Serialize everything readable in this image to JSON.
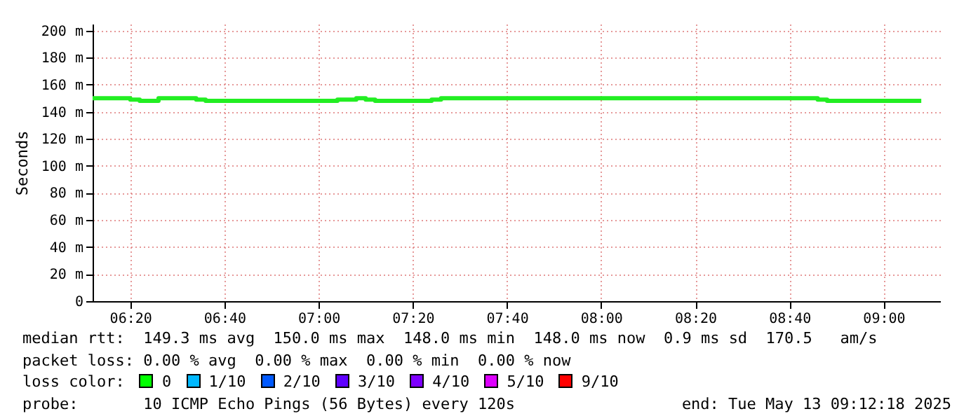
{
  "chart_data": {
    "type": "step",
    "ylabel": "Seconds",
    "x": [
      "2025-05-13T06:12",
      "2025-05-13T06:20",
      "2025-05-13T06:22",
      "2025-05-13T06:26",
      "2025-05-13T06:34",
      "2025-05-13T06:36",
      "2025-05-13T07:04",
      "2025-05-13T07:08",
      "2025-05-13T07:10",
      "2025-05-13T07:12",
      "2025-05-13T07:24",
      "2025-05-13T07:26",
      "2025-05-13T08:46",
      "2025-05-13T08:48",
      "2025-05-13T09:08"
    ],
    "series": [
      {
        "color": "#22ee22",
        "values": [
          150,
          149,
          148,
          150,
          149,
          148,
          149,
          150,
          149,
          148,
          149,
          150,
          149,
          148,
          148
        ]
      }
    ],
    "xlim": [
      "2025-05-13T06:12",
      "2025-05-13T09:12"
    ],
    "xticks": [
      {
        "value": "2025-05-13T06:20",
        "label": "06:20"
      },
      {
        "value": "2025-05-13T06:40",
        "label": "06:40"
      },
      {
        "value": "2025-05-13T07:00",
        "label": "07:00"
      },
      {
        "value": "2025-05-13T07:20",
        "label": "07:20"
      },
      {
        "value": "2025-05-13T07:40",
        "label": "07:40"
      },
      {
        "value": "2025-05-13T08:00",
        "label": "08:00"
      },
      {
        "value": "2025-05-13T08:20",
        "label": "08:20"
      },
      {
        "value": "2025-05-13T08:40",
        "label": "08:40"
      },
      {
        "value": "2025-05-13T09:00",
        "label": "09:00"
      }
    ],
    "ylim": [
      0,
      205
    ],
    "yticks": [
      0,
      {
        "value": 20,
        "label": "20 m"
      },
      {
        "value": 40,
        "label": "40 m"
      },
      {
        "value": 60,
        "label": "60 m"
      },
      {
        "value": 80,
        "label": "80 m"
      },
      {
        "value": 100,
        "label": "100 m"
      },
      {
        "value": 120,
        "label": "120 m"
      },
      {
        "value": 140,
        "label": "140 m"
      },
      {
        "value": 160,
        "label": "160 m"
      },
      {
        "value": 180,
        "label": "180 m"
      },
      {
        "value": 200,
        "label": "200 m"
      }
    ],
    "grid": true,
    "marker": "none",
    "line_style": "solid",
    "annotations": [
      "median rtt:  149.3 ms avg  150.0 ms max  148.0 ms min  148.0 ms now  0.9 ms sd  170.5   am/s",
      "packet loss: 0.00 % avg  0.00 % max  0.00 % min  0.00 % now",
      "loss color:  0  1/10  2/10  3/10  4/10  5/10  9/10",
      "probe:       10 ICMP Echo Pings (56 Bytes) every 120s",
      "end: Tue May 13 09:12:18 2025"
    ]
  }
}
